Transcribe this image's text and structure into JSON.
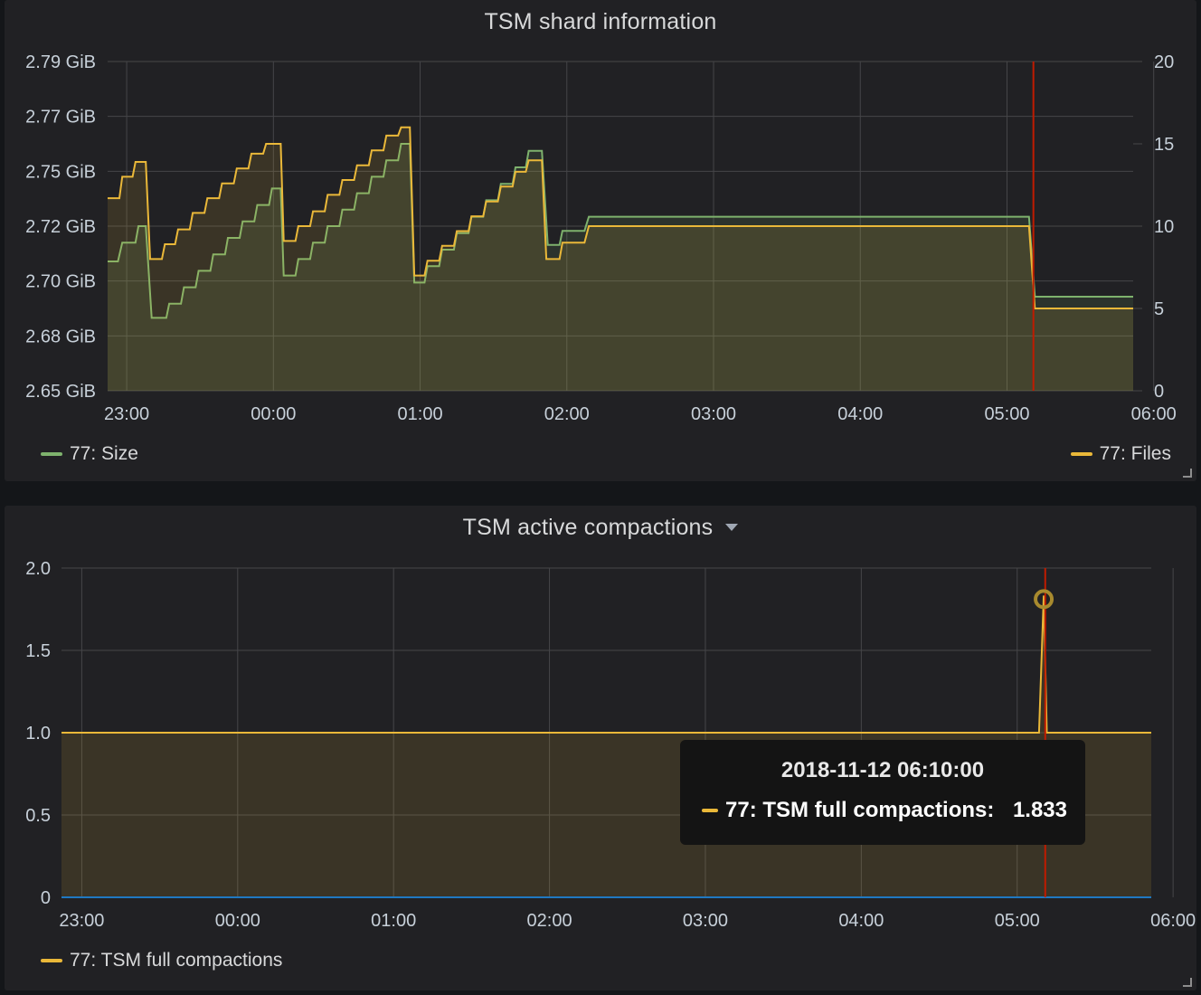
{
  "panels": {
    "shard": {
      "title": "TSM shard information"
    },
    "compactions": {
      "title": "TSM active compactions",
      "title_caret": "chevron-down-icon"
    }
  },
  "colors": {
    "size": "#7eb26d",
    "files": "#eab839",
    "compactions": "#eab839",
    "zero_series": "#1f78c1",
    "marker": "#bf1b00",
    "grid": "#464649",
    "fill": "#3c392c"
  },
  "chart_data": [
    {
      "type": "line",
      "title": "TSM shard information",
      "x_ticks": [
        "23:00",
        "00:00",
        "01:00",
        "02:00",
        "03:00",
        "04:00",
        "05:00",
        "06:00"
      ],
      "x_range_hours": [
        -0.13,
        6.86
      ],
      "y_left": {
        "ticks": [
          "2.79 GiB",
          "2.77 GiB",
          "2.75 GiB",
          "2.72 GiB",
          "2.70 GiB",
          "2.68 GiB",
          "2.65 GiB"
        ],
        "range_gib": [
          2.65,
          2.79
        ]
      },
      "y_right": {
        "ticks": [
          "20",
          "15",
          "10",
          "5",
          "0"
        ],
        "range": [
          0,
          20
        ]
      },
      "grid": true,
      "legend_left": "77: Size",
      "legend_right": "77: Files",
      "marker_time_hours": 6.18,
      "series": [
        {
          "name": "77: Size",
          "axis": "left",
          "unit": "GiB",
          "points": [
            [
              -0.13,
              2.705
            ],
            [
              -0.06,
              2.705
            ],
            [
              -0.03,
              2.713
            ],
            [
              0.06,
              2.713
            ],
            [
              0.08,
              2.72
            ],
            [
              0.13,
              2.72
            ],
            [
              0.17,
              2.681
            ],
            [
              0.27,
              2.681
            ],
            [
              0.29,
              2.687
            ],
            [
              0.37,
              2.687
            ],
            [
              0.39,
              2.694
            ],
            [
              0.47,
              2.694
            ],
            [
              0.49,
              2.701
            ],
            [
              0.57,
              2.701
            ],
            [
              0.59,
              2.708
            ],
            [
              0.67,
              2.708
            ],
            [
              0.69,
              2.715
            ],
            [
              0.77,
              2.715
            ],
            [
              0.79,
              2.722
            ],
            [
              0.87,
              2.722
            ],
            [
              0.89,
              2.729
            ],
            [
              0.97,
              2.729
            ],
            [
              0.99,
              2.736
            ],
            [
              1.05,
              2.736
            ],
            [
              1.07,
              2.699
            ],
            [
              1.15,
              2.699
            ],
            [
              1.17,
              2.706
            ],
            [
              1.25,
              2.706
            ],
            [
              1.27,
              2.713
            ],
            [
              1.35,
              2.713
            ],
            [
              1.37,
              2.72
            ],
            [
              1.45,
              2.72
            ],
            [
              1.47,
              2.727
            ],
            [
              1.55,
              2.727
            ],
            [
              1.57,
              2.734
            ],
            [
              1.65,
              2.734
            ],
            [
              1.67,
              2.741
            ],
            [
              1.75,
              2.741
            ],
            [
              1.77,
              2.748
            ],
            [
              1.85,
              2.748
            ],
            [
              1.87,
              2.755
            ],
            [
              1.93,
              2.755
            ],
            [
              1.96,
              2.696
            ],
            [
              2.03,
              2.696
            ],
            [
              2.05,
              2.703
            ],
            [
              2.13,
              2.703
            ],
            [
              2.15,
              2.71
            ],
            [
              2.23,
              2.71
            ],
            [
              2.25,
              2.717
            ],
            [
              2.33,
              2.717
            ],
            [
              2.35,
              2.724
            ],
            [
              2.43,
              2.724
            ],
            [
              2.45,
              2.731
            ],
            [
              2.53,
              2.731
            ],
            [
              2.55,
              2.738
            ],
            [
              2.63,
              2.738
            ],
            [
              2.65,
              2.745
            ],
            [
              2.72,
              2.745
            ],
            [
              2.74,
              2.752
            ],
            [
              2.83,
              2.752
            ],
            [
              2.87,
              2.712
            ],
            [
              2.95,
              2.712
            ],
            [
              2.97,
              2.718
            ],
            [
              3.12,
              2.718
            ],
            [
              3.15,
              2.724
            ],
            [
              6.15,
              2.724
            ],
            [
              6.19,
              2.69
            ],
            [
              6.86,
              2.69
            ]
          ]
        },
        {
          "name": "77: Files",
          "axis": "right",
          "unit": "count",
          "points": [
            [
              -0.13,
              11.7
            ],
            [
              -0.05,
              11.7
            ],
            [
              -0.03,
              13
            ],
            [
              0.04,
              13
            ],
            [
              0.06,
              13.9
            ],
            [
              0.13,
              13.9
            ],
            [
              0.16,
              8
            ],
            [
              0.24,
              8
            ],
            [
              0.26,
              8.9
            ],
            [
              0.33,
              8.9
            ],
            [
              0.35,
              9.8
            ],
            [
              0.43,
              9.8
            ],
            [
              0.45,
              10.8
            ],
            [
              0.53,
              10.8
            ],
            [
              0.55,
              11.7
            ],
            [
              0.63,
              11.7
            ],
            [
              0.65,
              12.6
            ],
            [
              0.73,
              12.6
            ],
            [
              0.75,
              13.5
            ],
            [
              0.83,
              13.5
            ],
            [
              0.85,
              14.4
            ],
            [
              0.93,
              14.4
            ],
            [
              0.95,
              15
            ],
            [
              1.05,
              15
            ],
            [
              1.07,
              9.1
            ],
            [
              1.15,
              9.1
            ],
            [
              1.17,
              10
            ],
            [
              1.25,
              10
            ],
            [
              1.27,
              10.9
            ],
            [
              1.35,
              10.9
            ],
            [
              1.37,
              11.9
            ],
            [
              1.45,
              11.9
            ],
            [
              1.47,
              12.8
            ],
            [
              1.55,
              12.8
            ],
            [
              1.57,
              13.7
            ],
            [
              1.65,
              13.7
            ],
            [
              1.67,
              14.6
            ],
            [
              1.75,
              14.6
            ],
            [
              1.77,
              15.5
            ],
            [
              1.85,
              15.5
            ],
            [
              1.87,
              16
            ],
            [
              1.93,
              16
            ],
            [
              1.96,
              7
            ],
            [
              2.03,
              7
            ],
            [
              2.05,
              7.9
            ],
            [
              2.13,
              7.9
            ],
            [
              2.15,
              8.8
            ],
            [
              2.23,
              8.8
            ],
            [
              2.25,
              9.7
            ],
            [
              2.33,
              9.7
            ],
            [
              2.35,
              10.6
            ],
            [
              2.43,
              10.6
            ],
            [
              2.45,
              11.5
            ],
            [
              2.53,
              11.5
            ],
            [
              2.55,
              12.4
            ],
            [
              2.63,
              12.4
            ],
            [
              2.65,
              13.3
            ],
            [
              2.72,
              13.3
            ],
            [
              2.74,
              14
            ],
            [
              2.83,
              14
            ],
            [
              2.86,
              8
            ],
            [
              2.95,
              8
            ],
            [
              2.97,
              9
            ],
            [
              3.12,
              9
            ],
            [
              3.15,
              10
            ],
            [
              6.15,
              10
            ],
            [
              6.19,
              5
            ],
            [
              6.86,
              5
            ]
          ]
        }
      ]
    },
    {
      "type": "area",
      "title": "TSM active compactions",
      "x_ticks": [
        "23:00",
        "00:00",
        "01:00",
        "02:00",
        "03:00",
        "04:00",
        "05:00",
        "06:00"
      ],
      "x_range_hours": [
        -0.13,
        6.86
      ],
      "y_ticks": [
        "2.0",
        "1.5",
        "1.0",
        "0.5",
        "0"
      ],
      "ylim": [
        0,
        2
      ],
      "grid": true,
      "legend": "77: TSM full compactions",
      "marker_time_hours": 6.18,
      "series": [
        {
          "name": "77: TSM full compactions",
          "points": [
            [
              -0.13,
              1
            ],
            [
              6.14,
              1
            ],
            [
              6.17,
              1.833
            ],
            [
              6.19,
              1
            ],
            [
              6.86,
              1
            ]
          ]
        },
        {
          "color": "#1f78c1",
          "points": [
            [
              -0.13,
              0
            ],
            [
              6.86,
              0
            ]
          ]
        }
      ],
      "tooltip": {
        "time": "2018-11-12 06:10:00",
        "label": "77: TSM full compactions:",
        "value": "1.833"
      }
    }
  ]
}
